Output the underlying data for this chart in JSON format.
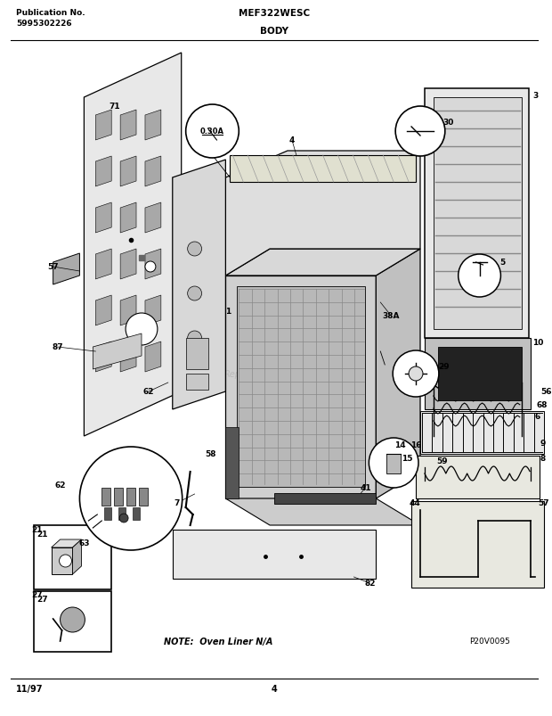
{
  "title_left_line1": "Publication No.",
  "title_left_line2": "5995302226",
  "title_center": "MEF322WESC",
  "title_body": "BODY",
  "footer_left": "11/97",
  "footer_center": "4",
  "note_text": "NOTE:  Oven Liner N/A",
  "watermark": "ReplacementParts.com",
  "part_id": "P20V0095",
  "bg_color": "#ffffff",
  "fig_width": 6.2,
  "fig_height": 8.04,
  "dpi": 100
}
